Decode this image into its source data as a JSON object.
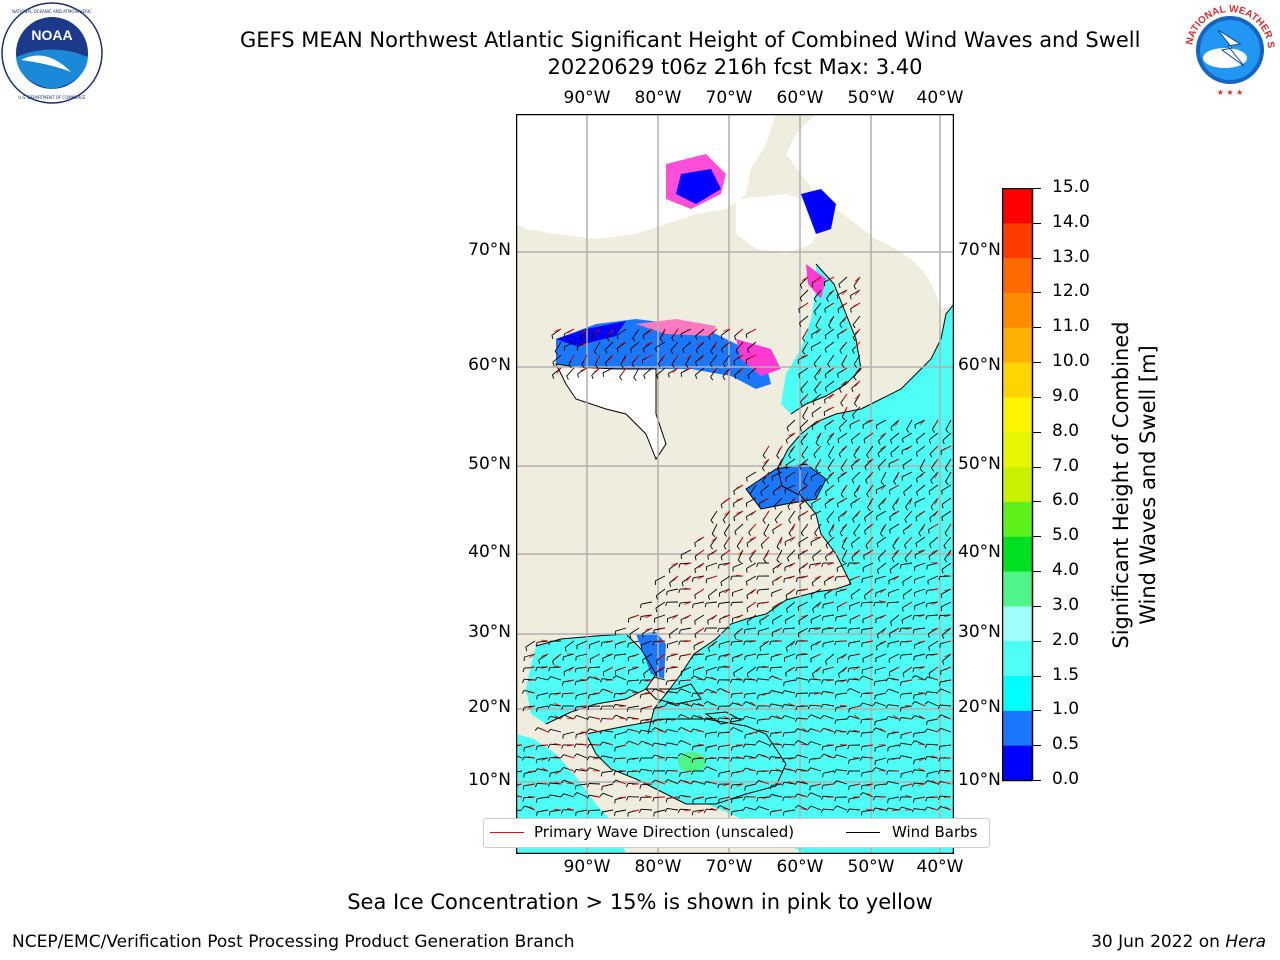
{
  "header": {
    "title_line1": "GEFS MEAN Northwest Atlantic Significant Height of Combined Wind Waves and Swell",
    "title_line2": "20220629 t06z 216h fcst   Max: 3.40"
  },
  "logos": {
    "left": "NOAA",
    "left_ring_text": "NATIONAL OCEANIC AND ATMOSPHERIC ADMINISTRATION · U.S. DEPARTMENT OF COMMERCE",
    "right_ring_text": "NATIONAL WEATHER SERVICE"
  },
  "map": {
    "lon_labels": [
      "90°W",
      "80°W",
      "70°W",
      "60°W",
      "50°W",
      "40°W"
    ],
    "lat_labels": [
      "70°N",
      "60°N",
      "50°N",
      "40°N",
      "30°N",
      "20°N",
      "10°N"
    ],
    "land_color": "#efedde",
    "ocean_colors": [
      "#0000ff",
      "#1a78ff",
      "#00ffff",
      "#4dfff5",
      "#a0fffa"
    ],
    "ice_colors": [
      "#ff3bd4",
      "#ff7ac0",
      "#ffa040",
      "#ffe000"
    ]
  },
  "legend": {
    "wave_label": "Primary Wave Direction (unscaled)",
    "wave_color": "#ff0000",
    "barb_label": "Wind Barbs",
    "barb_color": "#000000"
  },
  "colorbar": {
    "title_line1": "Significant Height of Combined",
    "title_line2": "Wind Waves and Swell [m]",
    "ticks": [
      "0.0",
      "0.5",
      "1.0",
      "1.5",
      "2.0",
      "3.0",
      "4.0",
      "5.0",
      "6.0",
      "7.0",
      "8.0",
      "9.0",
      "10.0",
      "11.0",
      "12.0",
      "13.0",
      "14.0",
      "15.0"
    ],
    "colors": [
      "#0000ff",
      "#1a78ff",
      "#00ffff",
      "#4dfff5",
      "#a0fffa",
      "#50f58a",
      "#00e020",
      "#5ef01a",
      "#c8f000",
      "#e6f500",
      "#fff500",
      "#ffd400",
      "#ffb000",
      "#ff8c00",
      "#ff6a00",
      "#ff3c00",
      "#ff0000"
    ]
  },
  "notes": {
    "sea_ice": "Sea Ice Concentration > 15% is shown in pink to yellow",
    "footer_left": "NCEP/EMC/Verification Post Processing Product Generation Branch",
    "footer_right_date": "30 Jun 2022 on ",
    "footer_right_host": "Hera"
  }
}
